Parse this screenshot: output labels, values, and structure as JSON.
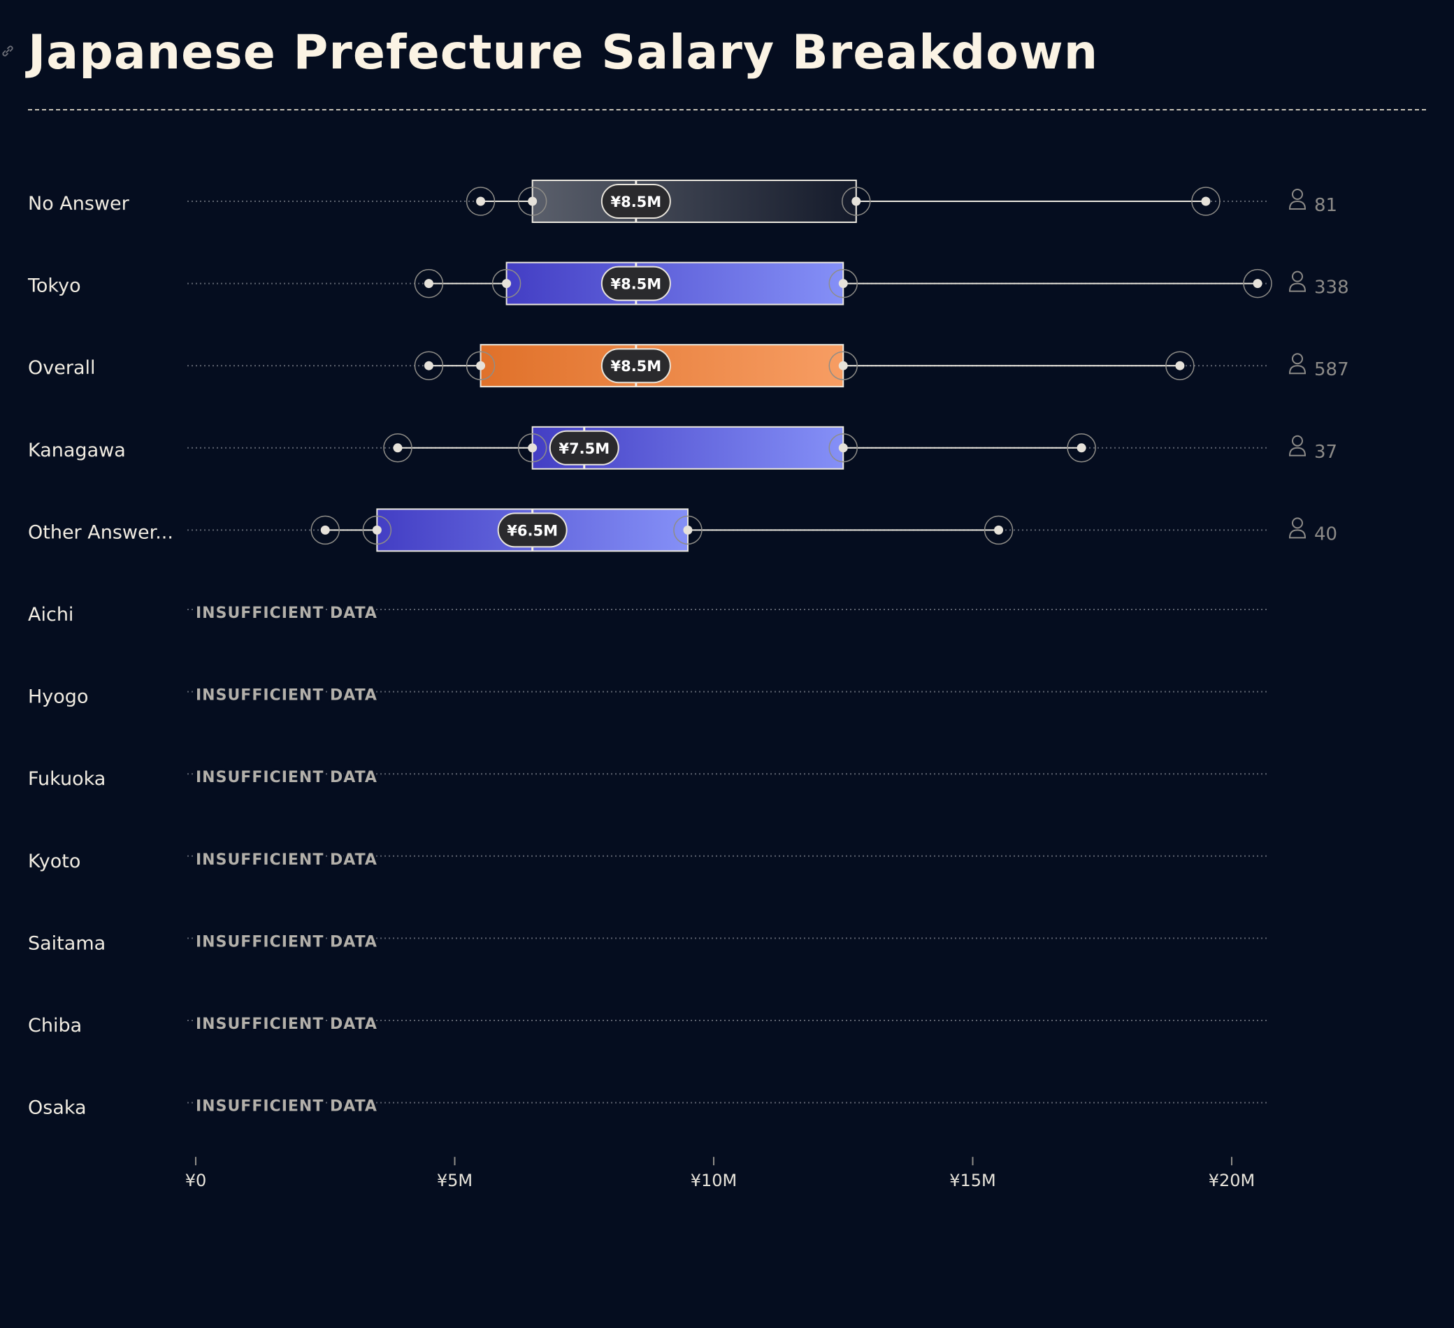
{
  "title": "Japanese Prefecture Salary Breakdown",
  "colors": {
    "background": "#050d1f",
    "grey_box": [
      "#5a5f6b",
      "#141a2a"
    ],
    "blue_box": [
      "#433ec4",
      "#8590f7"
    ],
    "orange_box": [
      "#e0712a",
      "#f79d63"
    ],
    "insufficient_text": "#b3b0aa"
  },
  "chart_data": {
    "type": "boxplot-horizontal",
    "title": "Japanese Prefecture Salary Breakdown",
    "xlim": [
      0,
      20
    ],
    "x_unit": "¥M",
    "x_ticks": [
      {
        "value": 0,
        "label": "¥0"
      },
      {
        "value": 5,
        "label": "¥5M"
      },
      {
        "value": 10,
        "label": "¥10M"
      },
      {
        "value": 15,
        "label": "¥15M"
      },
      {
        "value": 20,
        "label": "¥20M"
      }
    ],
    "grid": false,
    "insufficient_label": "INSUFFICIENT DATA",
    "rows": [
      {
        "label": "No Answer",
        "min": 5.5,
        "q1": 6.5,
        "median": 8.5,
        "q3": 12.75,
        "max": 19.5,
        "median_label": "¥8.5M",
        "count": "81",
        "style": "grey"
      },
      {
        "label": "Tokyo",
        "min": 4.5,
        "q1": 6.0,
        "median": 8.5,
        "q3": 12.5,
        "max": 20.5,
        "median_label": "¥8.5M",
        "count": "338",
        "style": "blue"
      },
      {
        "label": "Overall",
        "min": 4.5,
        "q1": 5.5,
        "median": 8.5,
        "q3": 12.5,
        "max": 19.0,
        "median_label": "¥8.5M",
        "count": "587",
        "style": "orange"
      },
      {
        "label": "Kanagawa",
        "min": 3.9,
        "q1": 6.5,
        "median": 7.5,
        "q3": 12.5,
        "max": 17.1,
        "median_label": "¥7.5M",
        "count": "37",
        "style": "blue"
      },
      {
        "label": "Other Answer...",
        "min": 2.5,
        "q1": 3.5,
        "median": 6.5,
        "q3": 9.5,
        "max": 15.5,
        "median_label": "¥6.5M",
        "count": "40",
        "style": "blue"
      },
      {
        "label": "Aichi",
        "insufficient": true
      },
      {
        "label": "Hyogo",
        "insufficient": true
      },
      {
        "label": "Fukuoka",
        "insufficient": true
      },
      {
        "label": "Kyoto",
        "insufficient": true
      },
      {
        "label": "Saitama",
        "insufficient": true
      },
      {
        "label": "Chiba",
        "insufficient": true
      },
      {
        "label": "Osaka",
        "insufficient": true
      }
    ]
  }
}
